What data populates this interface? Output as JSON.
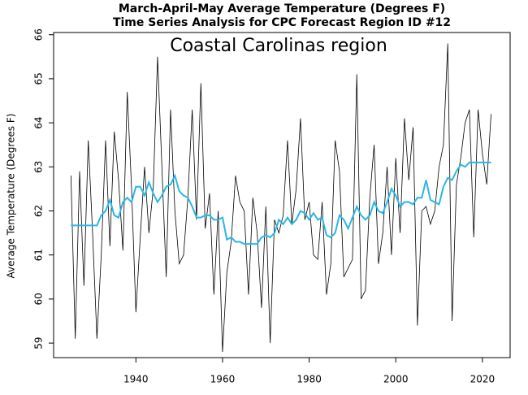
{
  "chart_data": {
    "type": "line",
    "title": "March-April-May Average Temperature (Degrees F)",
    "subtitle": "Time Series Analysis for CPC Forecast Region ID #12",
    "annotation": "Coastal Carolinas region",
    "y_label": "Average Temperature (Degrees F)",
    "x": [
      1925,
      1926,
      1927,
      1928,
      1929,
      1930,
      1931,
      1932,
      1933,
      1934,
      1935,
      1936,
      1937,
      1938,
      1939,
      1940,
      1941,
      1942,
      1943,
      1944,
      1945,
      1946,
      1947,
      1948,
      1949,
      1950,
      1951,
      1952,
      1953,
      1954,
      1955,
      1956,
      1957,
      1958,
      1959,
      1960,
      1961,
      1962,
      1963,
      1964,
      1965,
      1966,
      1967,
      1968,
      1969,
      1970,
      1971,
      1972,
      1973,
      1974,
      1975,
      1976,
      1977,
      1978,
      1979,
      1980,
      1981,
      1982,
      1983,
      1984,
      1985,
      1986,
      1987,
      1988,
      1989,
      1990,
      1991,
      1992,
      1993,
      1994,
      1995,
      1996,
      1997,
      1998,
      1999,
      2000,
      2001,
      2002,
      2003,
      2004,
      2005,
      2006,
      2007,
      2008,
      2009,
      2010,
      2011,
      2012,
      2013,
      2014,
      2015,
      2016,
      2017,
      2018,
      2019,
      2020,
      2021,
      2022
    ],
    "series": [
      {
        "color": "#000000",
        "values": [
          62.8,
          59.1,
          62.9,
          60.3,
          63.6,
          61.5,
          59.1,
          61.0,
          63.6,
          61.2,
          63.8,
          62.7,
          61.1,
          64.7,
          62.5,
          59.7,
          61.4,
          63.0,
          61.5,
          62.5,
          65.5,
          63.0,
          60.5,
          64.3,
          62.0,
          60.8,
          61.0,
          62.3,
          64.3,
          61.8,
          64.9,
          61.6,
          62.4,
          60.1,
          62.0,
          58.8,
          60.6,
          61.3,
          62.8,
          62.2,
          62.0,
          60.1,
          62.3,
          61.5,
          59.8,
          62.1,
          59.0,
          61.8,
          61.5,
          61.9,
          63.6,
          61.7,
          62.5,
          64.1,
          61.8,
          62.2,
          61.0,
          60.9,
          62.2,
          60.1,
          60.8,
          63.6,
          62.9,
          60.5,
          60.7,
          60.9,
          65.1,
          60.0,
          60.2,
          62.3,
          63.5,
          60.8,
          61.5,
          63.0,
          61.0,
          63.2,
          61.5,
          64.1,
          62.7,
          63.9,
          59.4,
          62.0,
          62.1,
          61.7,
          62.0,
          63.0,
          63.5,
          65.8,
          59.5,
          62.6,
          63.2,
          64.0,
          64.3,
          61.4,
          64.3,
          63.3,
          62.6,
          64.2
        ]
      },
      {
        "color": "#29b6e8",
        "values": [
          61.67,
          61.67,
          61.67,
          61.67,
          61.67,
          61.67,
          61.67,
          61.9,
          62.0,
          62.25,
          61.9,
          61.85,
          62.2,
          62.3,
          62.2,
          62.55,
          62.55,
          62.35,
          62.65,
          62.4,
          62.2,
          62.35,
          62.55,
          62.6,
          62.8,
          62.45,
          62.35,
          62.3,
          62.1,
          61.85,
          61.85,
          61.9,
          61.9,
          61.8,
          61.8,
          61.85,
          61.35,
          61.4,
          61.3,
          61.3,
          61.25,
          61.25,
          61.25,
          61.25,
          61.4,
          61.45,
          61.4,
          61.5,
          61.8,
          61.7,
          61.85,
          61.7,
          61.8,
          62.0,
          61.95,
          61.8,
          61.95,
          61.8,
          61.85,
          61.45,
          61.4,
          61.5,
          61.9,
          61.8,
          61.6,
          61.85,
          62.1,
          61.9,
          61.8,
          61.9,
          62.2,
          62.0,
          61.95,
          62.2,
          62.5,
          62.35,
          62.1,
          62.2,
          62.2,
          62.15,
          62.3,
          62.3,
          62.7,
          62.25,
          62.2,
          62.15,
          62.55,
          62.75,
          62.7,
          62.9,
          63.05,
          63.0,
          63.1,
          63.1,
          63.1,
          63.1,
          63.1,
          63.1
        ]
      }
    ],
    "xlim": [
      1921,
      2026.4
    ],
    "ylim": [
      58.67,
      66.05
    ],
    "xticks": [
      1940,
      1960,
      1980,
      2000,
      2020
    ],
    "yticks": [
      59,
      60,
      61,
      62,
      63,
      64,
      65,
      66
    ]
  }
}
